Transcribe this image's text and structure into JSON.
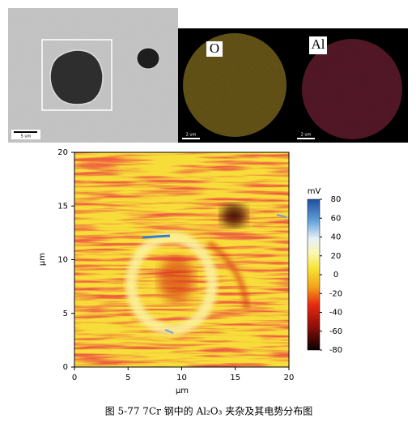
{
  "figure": {
    "sem": {
      "scale_label": "5 um"
    },
    "o_map": {
      "label": "O",
      "scale_label": "2 um"
    },
    "al_map": {
      "label": "Al",
      "scale_label": "2 um"
    },
    "potential_map": {
      "xlabel": "μm",
      "ylabel": "μm",
      "xlim": [
        0,
        20
      ],
      "ylim": [
        0,
        20
      ],
      "xticks": [
        0,
        5,
        10,
        15,
        20
      ],
      "yticks": [
        0,
        5,
        10,
        15,
        20
      ],
      "colorbar": {
        "label": "mV",
        "lim": [
          -80,
          80
        ],
        "ticks": [
          80,
          60,
          40,
          20,
          0,
          -20,
          -40,
          -60,
          -80
        ]
      }
    },
    "caption": "图 5-77 7Cr 钢中的 Al₂O₃ 夹杂及其电势分布图"
  }
}
